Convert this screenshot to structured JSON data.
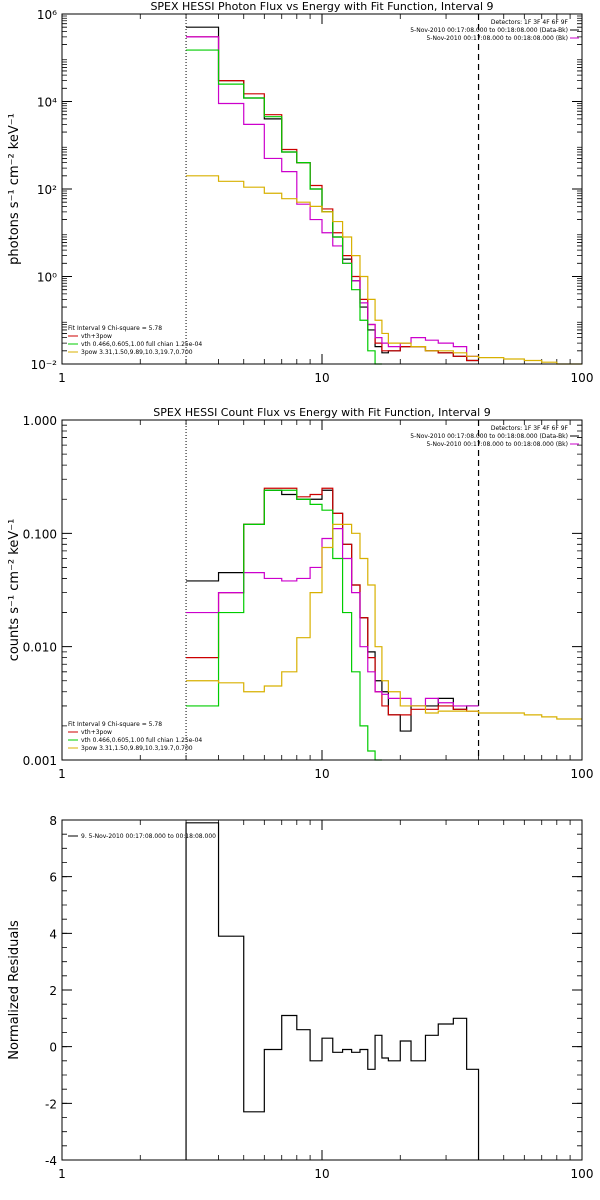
{
  "colors": {
    "black": "#000000",
    "red": "#cc0000",
    "magenta": "#cc00cc",
    "green": "#00cc00",
    "yellow": "#d8b000"
  },
  "chart_data": [
    {
      "type": "line",
      "title": "SPEX HESSI Photon Flux vs Energy with Fit Function, Interval 9",
      "ylabel": "photons s⁻¹ cm⁻² keV⁻¹",
      "xlabel": "",
      "xscale": "log",
      "yscale": "log",
      "xlim": [
        1,
        100
      ],
      "ylim": [
        0.01,
        1000000
      ],
      "xticks": [
        {
          "v": 1,
          "label": "1"
        },
        {
          "v": 10,
          "label": "10"
        },
        {
          "v": 100,
          "label": "100"
        }
      ],
      "yticks": [
        {
          "v": 0.01,
          "label": "10⁻²"
        },
        {
          "v": 1,
          "label": "10⁰"
        },
        {
          "v": 100,
          "label": "10²"
        },
        {
          "v": 10000,
          "label": "10⁴"
        },
        {
          "v": 1000000,
          "label": "10⁶"
        }
      ],
      "vlines": [
        {
          "x": 3,
          "style": "dotted",
          "color": "#000000"
        },
        {
          "x": 40,
          "style": "dashed",
          "color": "#000000"
        }
      ],
      "edges": [
        3,
        4,
        5,
        6,
        7,
        8,
        9,
        10,
        11,
        12,
        13,
        14,
        15,
        16,
        17,
        18,
        20,
        22,
        25,
        28,
        32,
        36,
        40,
        50,
        60,
        70,
        80,
        100
      ],
      "series": [
        {
          "name": "",
          "color": "#000000",
          "values": [
            500000,
            30000,
            12000,
            4000,
            700,
            400,
            100,
            30,
            8,
            2.5,
            0.8,
            0.2,
            0.06,
            0.025,
            0.018,
            0.02,
            0.025,
            0.025,
            0.02,
            0.018,
            0.015,
            0.012
          ]
        },
        {
          "name": "",
          "color": "#cc0000",
          "values": [
            300000,
            30000,
            15000,
            5000,
            800,
            400,
            120,
            35,
            10,
            3,
            1,
            0.3,
            0.08,
            0.03,
            0.02,
            0.02,
            0.025,
            0.025,
            0.02,
            0.018,
            0.015,
            0.012
          ]
        },
        {
          "name": "",
          "color": "#cc00cc",
          "values": [
            300000,
            9000,
            3000,
            500,
            250,
            45,
            20,
            10,
            5,
            2,
            0.8,
            0.25,
            0.08,
            0.04,
            0.03,
            0.025,
            0.03,
            0.04,
            0.035,
            0.03,
            0.025,
            0.015
          ]
        },
        {
          "name": "",
          "color": "#00cc00",
          "values": [
            150000,
            25000,
            12000,
            4500,
            700,
            400,
            100,
            30,
            8,
            2,
            0.5,
            0.1,
            0.02,
            0.008
          ]
        },
        {
          "name": "",
          "color": "#d8b000",
          "values": [
            200,
            150,
            110,
            80,
            60,
            50,
            40,
            30,
            18,
            8,
            3,
            1,
            0.3,
            0.1,
            0.05,
            0.03,
            0.03,
            0.025,
            0.02,
            0.02,
            0.018,
            0.015,
            0.014,
            0.013,
            0.012,
            0.011,
            0.01
          ]
        }
      ],
      "legend_right": [
        "Detectors: 1F 3F 4F 6F 9F",
        "5-Nov-2010 00:17:08.000 to 00:18:08.000 (Data-Bk)",
        "5-Nov-2010 00:17:08.000 to 00:18:08.000 (Bk)"
      ],
      "legend_left": {
        "header": "Fit Interval 9   Chi-square = 5.78",
        "items": [
          "vth+3pow",
          "vth 0.466,0.605,1.00  full chian 1.25e-04",
          "3pow 3.31,1.50,9.89,10.3,19.7,0.700"
        ]
      }
    },
    {
      "type": "line",
      "title": "SPEX HESSI Count Flux vs Energy with Fit Function, Interval 9",
      "ylabel": "counts s⁻¹ cm⁻² keV⁻¹",
      "xlabel": "",
      "xscale": "log",
      "yscale": "log",
      "xlim": [
        1,
        100
      ],
      "ylim": [
        0.001,
        1
      ],
      "xticks": [
        {
          "v": 1,
          "label": "1"
        },
        {
          "v": 10,
          "label": "10"
        },
        {
          "v": 100,
          "label": "100"
        }
      ],
      "yticks": [
        {
          "v": 0.001,
          "label": "0.001"
        },
        {
          "v": 0.01,
          "label": "0.010"
        },
        {
          "v": 0.1,
          "label": "0.100"
        },
        {
          "v": 1,
          "label": "1.000"
        }
      ],
      "vlines": [
        {
          "x": 3,
          "style": "dotted",
          "color": "#000000"
        },
        {
          "x": 40,
          "style": "dashed",
          "color": "#000000"
        }
      ],
      "edges": [
        3,
        4,
        5,
        6,
        7,
        8,
        9,
        10,
        11,
        12,
        13,
        14,
        15,
        16,
        17,
        18,
        20,
        22,
        25,
        28,
        32,
        36,
        40,
        50,
        60,
        70,
        80,
        100
      ],
      "series": [
        {
          "name": "",
          "color": "#000000",
          "values": [
            0.038,
            0.045,
            0.12,
            0.24,
            0.22,
            0.2,
            0.2,
            0.24,
            0.15,
            0.08,
            0.035,
            0.018,
            0.009,
            0.005,
            0.004,
            0.0025,
            0.0018,
            0.003,
            0.003,
            0.0035,
            0.0028,
            0.003
          ]
        },
        {
          "name": "",
          "color": "#cc0000",
          "values": [
            0.008,
            0.03,
            0.12,
            0.25,
            0.25,
            0.21,
            0.22,
            0.25,
            0.15,
            0.08,
            0.035,
            0.018,
            0.008,
            0.004,
            0.003,
            0.0025,
            0.0025,
            0.0028,
            0.0028,
            0.003,
            0.0028,
            0.0027
          ]
        },
        {
          "name": "",
          "color": "#cc00cc",
          "values": [
            0.02,
            0.03,
            0.045,
            0.04,
            0.038,
            0.04,
            0.05,
            0.09,
            0.11,
            0.06,
            0.03,
            0.01,
            0.006,
            0.004,
            0.0038,
            0.0035,
            0.0035,
            0.003,
            0.0035,
            0.0032,
            0.003,
            0.003
          ]
        },
        {
          "name": "",
          "color": "#00cc00",
          "values": [
            0.003,
            0.02,
            0.12,
            0.24,
            0.24,
            0.2,
            0.18,
            0.16,
            0.06,
            0.02,
            0.006,
            0.002,
            0.0012,
            0.001
          ]
        },
        {
          "name": "",
          "color": "#d8b000",
          "values": [
            0.005,
            0.0048,
            0.004,
            0.0045,
            0.006,
            0.012,
            0.03,
            0.075,
            0.12,
            0.12,
            0.1,
            0.06,
            0.035,
            0.01,
            0.005,
            0.004,
            0.003,
            0.003,
            0.0026,
            0.0027,
            0.0027,
            0.0027,
            0.0026,
            0.0026,
            0.0025,
            0.0024,
            0.0023
          ]
        }
      ],
      "legend_right": [
        "Detectors: 1F 3F 4F 6F 9F",
        "5-Nov-2010 00:17:08.000 to 00:18:08.000 (Data-Bk)",
        "5-Nov-2010 00:17:08.000 to 00:18:08.000 (Bk)"
      ],
      "legend_left": {
        "header": "Fit Interval 9   Chi-square = 5.78",
        "items": [
          "vth+3pow",
          "vth 0.466,0.605,1.00  full chian 1.25e-04",
          "3pow 3.31,1.50,9.89,10.3,19.7,0.700"
        ]
      }
    },
    {
      "type": "line",
      "title": "",
      "ylabel": "Normalized Residuals",
      "xlabel": "",
      "xscale": "log",
      "yscale": "linear",
      "xlim": [
        1,
        100
      ],
      "ylim": [
        -4,
        8
      ],
      "xticks": [
        {
          "v": 1,
          "label": "1"
        },
        {
          "v": 10,
          "label": "10"
        },
        {
          "v": 100,
          "label": "100"
        }
      ],
      "yticks": [
        {
          "v": -4,
          "label": "-4"
        },
        {
          "v": -2,
          "label": "-2"
        },
        {
          "v": 0,
          "label": "0"
        },
        {
          "v": 2,
          "label": "2"
        },
        {
          "v": 4,
          "label": "4"
        },
        {
          "v": 6,
          "label": "6"
        },
        {
          "v": 8,
          "label": "8"
        }
      ],
      "vlines": [],
      "edges": [
        3,
        4,
        5,
        6,
        7,
        8,
        9,
        10,
        11,
        12,
        13,
        14,
        15,
        16,
        17,
        18,
        20,
        22,
        25,
        28,
        32,
        36,
        40
      ],
      "baseline": -4,
      "series": [
        {
          "name": "",
          "color": "#000000",
          "values": [
            7.9,
            3.9,
            -2.3,
            -0.1,
            1.1,
            0.6,
            -0.5,
            0.3,
            -0.2,
            -0.1,
            -0.2,
            -0.1,
            -0.8,
            0.4,
            -0.4,
            -0.5,
            0.2,
            -0.5,
            0.4,
            0.8,
            1.0,
            -0.8
          ]
        }
      ],
      "legend_left": {
        "header": "",
        "items": [
          "9. 5-Nov-2010 00:17:08.000 to 00:18:08.000"
        ]
      }
    }
  ]
}
